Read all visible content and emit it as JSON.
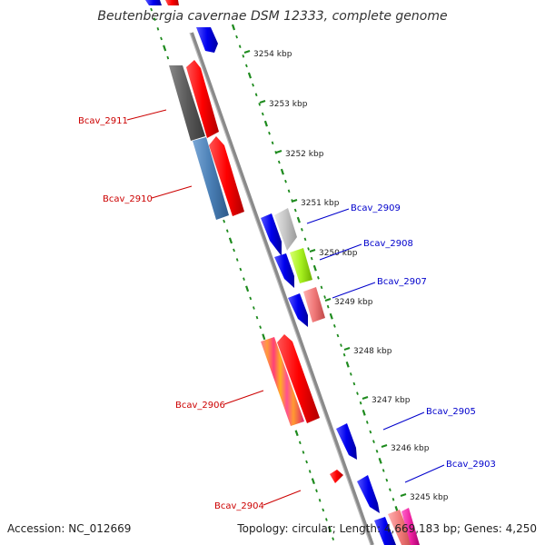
{
  "title": "Beutenbergia cavernae DSM 12333, complete genome",
  "footer": {
    "accession": "Accession: NC_012669",
    "topology": "Topology: circular; Length: 4,669,183 bp; Genes: 4,250"
  },
  "colors": {
    "backbone": "#8a8a8a",
    "tick": "#1d8a1d",
    "forward_label": "#0000cc",
    "reverse_label": "#cc0000"
  },
  "kbp_marks": [
    {
      "label": "3254 kbp",
      "pos": 3254
    },
    {
      "label": "3253 kbp",
      "pos": 3253
    },
    {
      "label": "3252 kbp",
      "pos": 3252
    },
    {
      "label": "3251 kbp",
      "pos": 3251
    },
    {
      "label": "3250 kbp",
      "pos": 3250
    },
    {
      "label": "3249 kbp",
      "pos": 3249
    },
    {
      "label": "3248 kbp",
      "pos": 3248
    },
    {
      "label": "3247 kbp",
      "pos": 3247
    },
    {
      "label": "3246 kbp",
      "pos": 3246
    },
    {
      "label": "3245 kbp",
      "pos": 3245
    }
  ],
  "gene_labels": [
    {
      "label": "Bcav_2911",
      "strand": "reverse"
    },
    {
      "label": "Bcav_2910",
      "strand": "reverse"
    },
    {
      "label": "Bcav_2909",
      "strand": "forward"
    },
    {
      "label": "Bcav_2908",
      "strand": "forward"
    },
    {
      "label": "Bcav_2907",
      "strand": "forward"
    },
    {
      "label": "Bcav_2906",
      "strand": "reverse"
    },
    {
      "label": "Bcav_2905",
      "strand": "forward"
    },
    {
      "label": "Bcav_2903",
      "strand": "forward"
    },
    {
      "label": "Bcav_2904",
      "strand": "reverse"
    }
  ]
}
